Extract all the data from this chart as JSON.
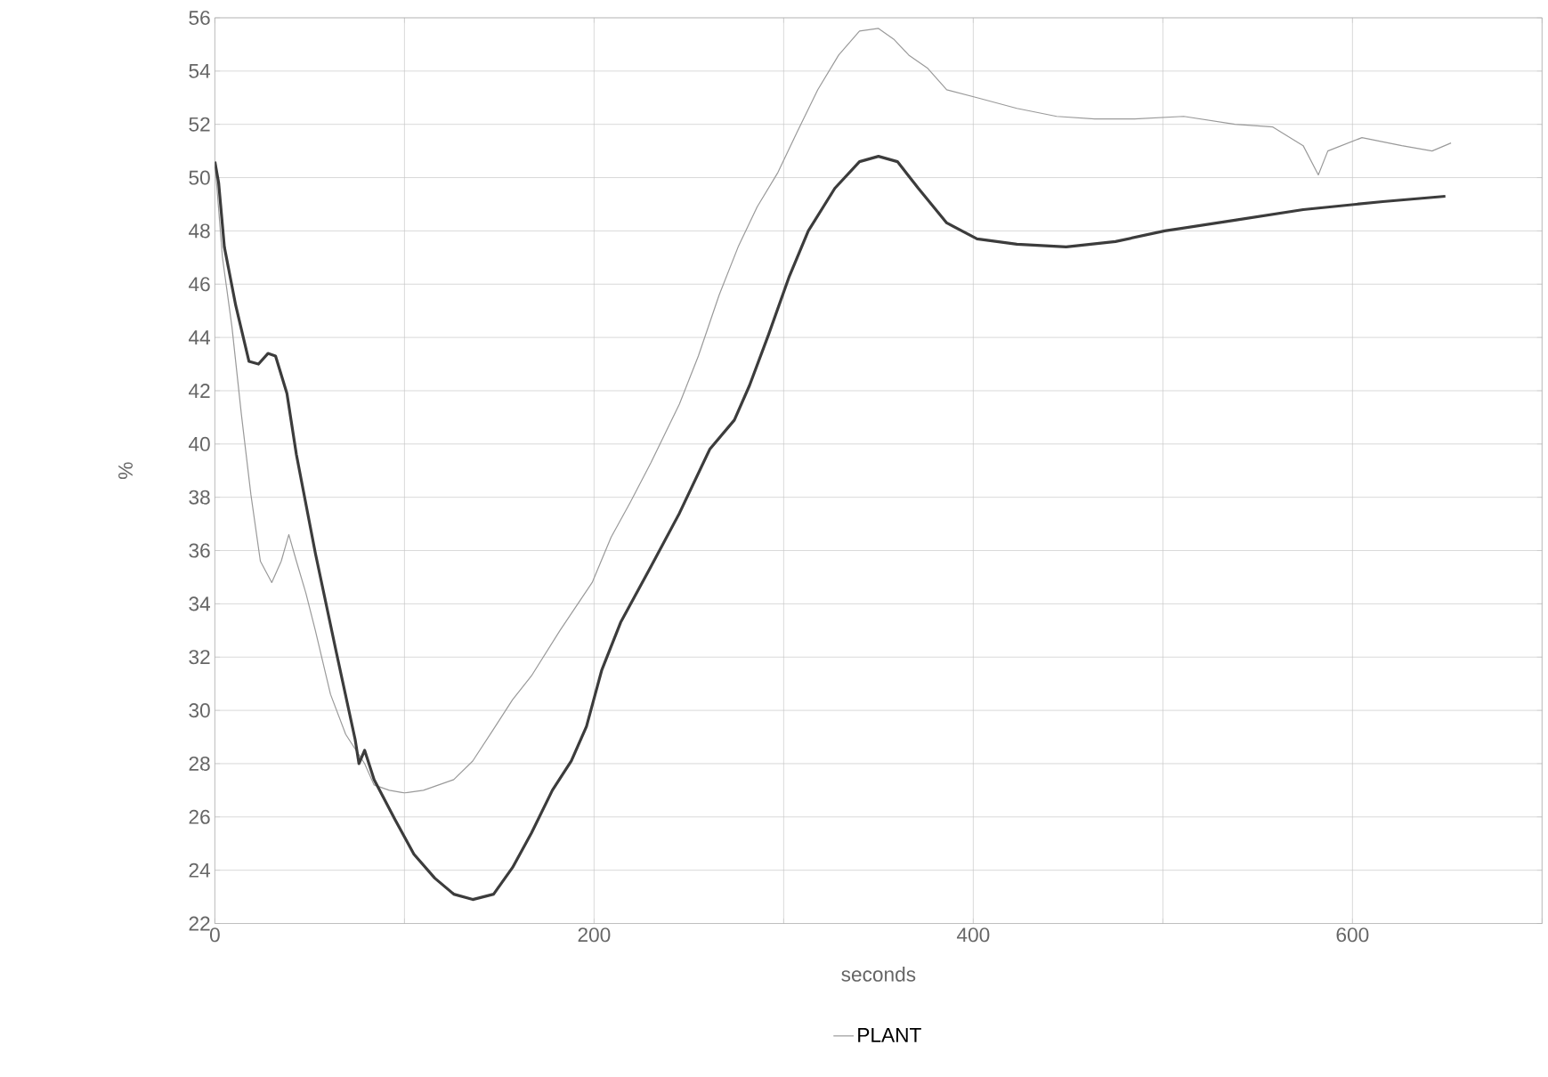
{
  "chart_data": {
    "type": "line",
    "xlabel": "seconds",
    "ylabel": "%",
    "xlim": [
      0,
      700
    ],
    "ylim": [
      22,
      56
    ],
    "xticks": [
      0,
      {
        "value": 100,
        "label": null
      },
      200,
      {
        "value": 300,
        "label": null
      },
      400,
      {
        "value": 500,
        "label": null
      },
      600,
      {
        "value": 700,
        "label": null
      }
    ],
    "yticks": [
      22,
      24,
      26,
      28,
      30,
      32,
      34,
      36,
      38,
      40,
      42,
      44,
      46,
      48,
      50,
      52,
      54,
      56
    ],
    "grid": true,
    "legend": "bottom",
    "marker": "none",
    "line_style": "solid",
    "series": [
      {
        "name": "PLANT",
        "color": "#9a9a9a",
        "x": [
          0,
          4,
          9,
          14,
          19,
          24,
          30,
          35,
          39,
          43,
          48,
          53,
          61,
          69,
          79,
          84,
          92,
          100,
          110,
          126,
          136,
          147,
          157,
          167,
          182,
          199,
          209,
          219,
          230,
          245,
          255,
          266,
          276,
          286,
          297,
          307,
          318,
          329,
          340,
          350,
          358,
          366,
          376,
          386,
          402,
          423,
          444,
          464,
          485,
          511,
          538,
          558,
          574,
          582,
          587,
          605,
          626,
          642,
          652
        ],
        "values": [
          50.6,
          47.0,
          44.4,
          41.1,
          38.1,
          35.6,
          34.8,
          35.6,
          36.6,
          35.6,
          34.4,
          33.0,
          30.6,
          29.1,
          28.0,
          27.2,
          27.0,
          26.9,
          27.0,
          27.4,
          28.1,
          29.3,
          30.4,
          31.3,
          33.0,
          34.8,
          36.5,
          37.8,
          39.3,
          41.5,
          43.3,
          45.6,
          47.4,
          48.9,
          50.2,
          51.7,
          53.3,
          54.6,
          55.5,
          55.6,
          55.2,
          54.6,
          54.1,
          53.3,
          53.0,
          52.6,
          52.3,
          52.2,
          52.2,
          52.3,
          52.0,
          51.9,
          51.2,
          50.1,
          51.0,
          51.5,
          51.2,
          51.0,
          51.3
        ]
      },
      {
        "color": "#3c3c3c",
        "x": [
          0,
          2,
          5,
          11,
          18,
          23,
          28,
          32,
          38,
          43,
          53,
          64,
          74,
          76,
          79,
          84,
          95,
          105,
          116,
          126,
          136,
          147,
          157,
          167,
          178,
          188,
          196,
          204,
          214,
          230,
          245,
          261,
          274,
          282,
          292,
          303,
          313,
          327,
          340,
          350,
          360,
          371,
          386,
          402,
          423,
          449,
          475,
          501,
          538,
          574,
          616,
          649
        ],
        "values": [
          50.6,
          49.8,
          47.4,
          45.2,
          43.1,
          43.0,
          43.4,
          43.3,
          41.9,
          39.6,
          35.9,
          32.2,
          28.9,
          28.0,
          28.5,
          27.4,
          25.9,
          24.6,
          23.7,
          23.1,
          22.9,
          23.1,
          24.1,
          25.4,
          27.0,
          28.1,
          29.4,
          31.5,
          33.3,
          35.4,
          37.4,
          39.8,
          40.9,
          42.2,
          44.1,
          46.3,
          48.0,
          49.6,
          50.6,
          50.8,
          50.6,
          49.6,
          48.3,
          47.7,
          47.5,
          47.4,
          47.6,
          48.0,
          48.4,
          48.8,
          49.1,
          49.3
        ]
      }
    ]
  }
}
